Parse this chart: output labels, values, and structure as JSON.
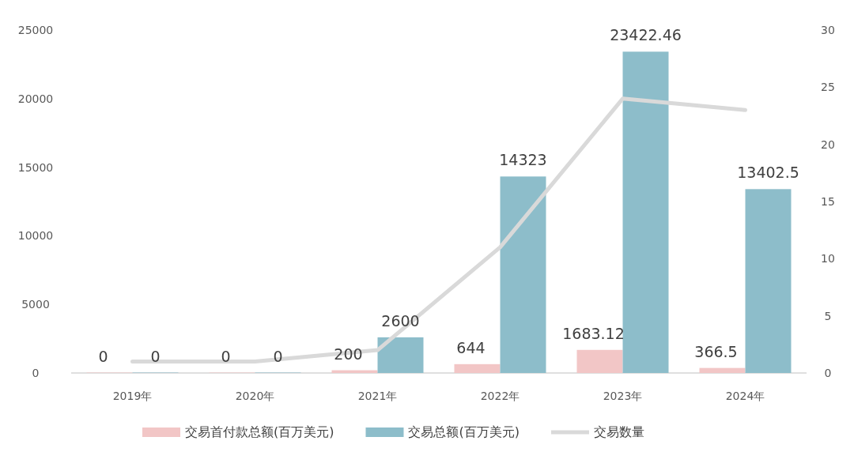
{
  "chart_data": {
    "type": "bar",
    "categories": [
      "2019年",
      "2020年",
      "2021年",
      "2022年",
      "2023年",
      "2024年"
    ],
    "series": [
      {
        "name": "交易首付款总额(百万美元)",
        "color": "#f2c6c6",
        "values": [
          0,
          0,
          200,
          644,
          1683.12,
          366.5
        ],
        "value_labels": [
          "0",
          "0",
          "200",
          "644",
          "1683.12",
          "366.5"
        ]
      },
      {
        "name": "交易总额(百万美元)",
        "color": "#8dbdca",
        "values": [
          0,
          0,
          2600,
          14323,
          23422.46,
          13402.5
        ],
        "value_labels": [
          "0",
          "0",
          "2600",
          "14323",
          "23422.46",
          "13402.5"
        ]
      },
      {
        "name": "交易数量",
        "type": "line",
        "axis": "y2",
        "color": "#d9d9d9",
        "values": [
          1,
          1,
          2,
          11,
          24,
          23
        ]
      }
    ],
    "ylim": [
      0,
      25000
    ],
    "yticks": [
      0,
      5000,
      10000,
      15000,
      20000,
      25000
    ],
    "y2lim": [
      0,
      30
    ],
    "y2ticks": [
      0,
      5,
      10,
      15,
      20,
      25,
      30
    ],
    "grid": false,
    "legend": "bottom"
  }
}
